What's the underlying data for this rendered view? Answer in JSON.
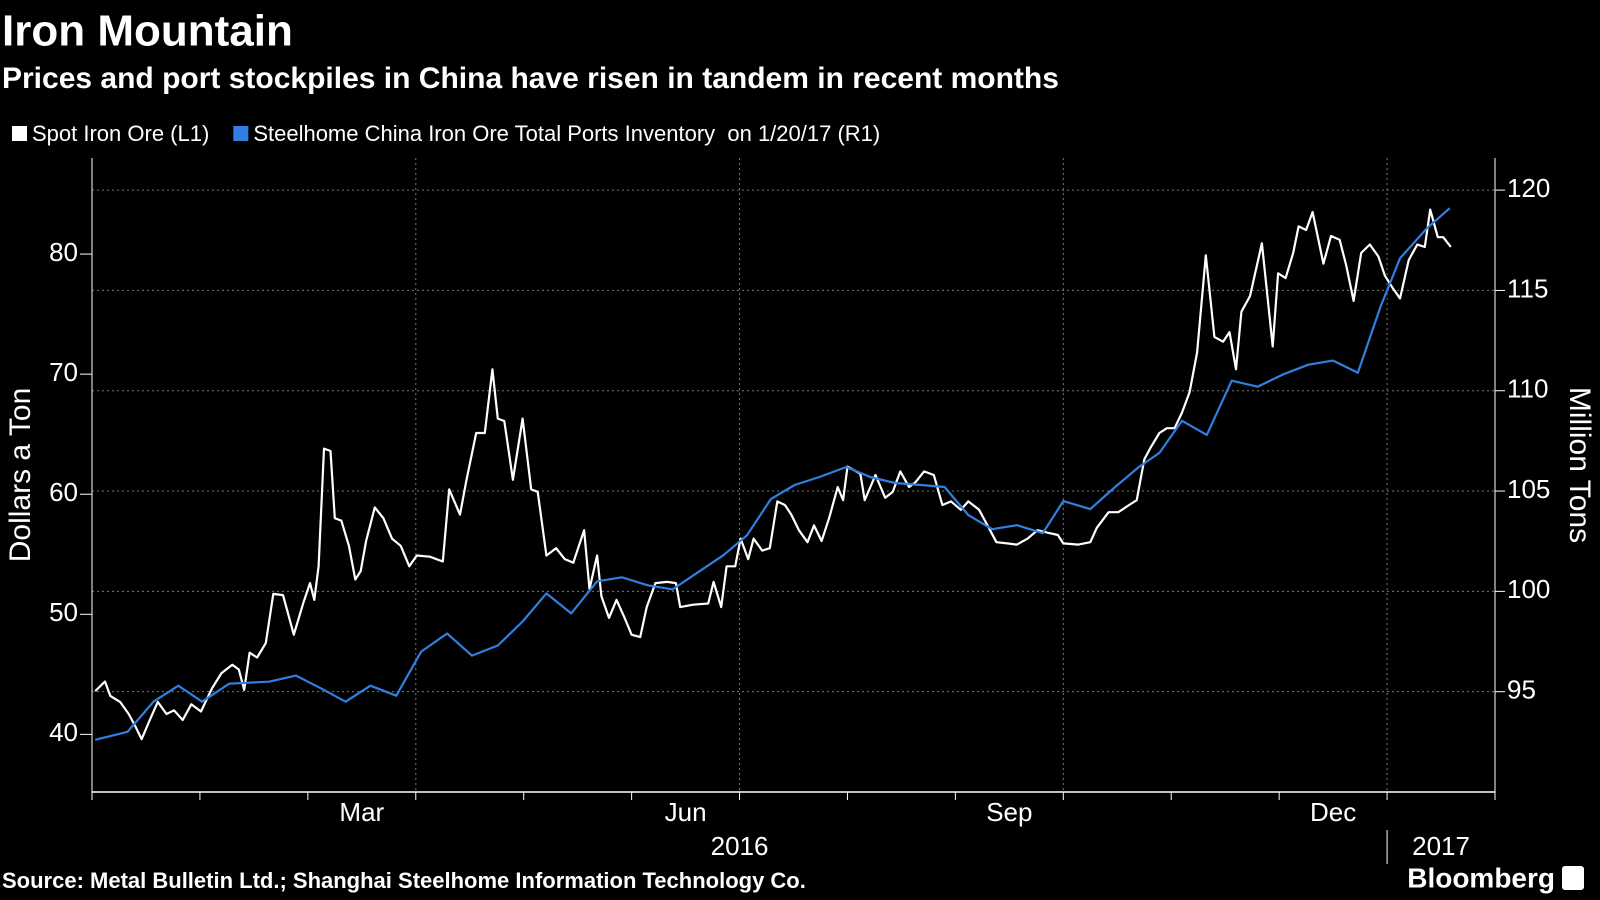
{
  "chart_data": {
    "type": "line",
    "title": "Iron Mountain",
    "subtitle": "Prices and port stockpiles in China have risen in tandem in recent months",
    "ylabel": "Dollars a Ton",
    "y2label": "Million Tons",
    "source": "Source: Metal Bulletin Ltd.; Shanghai Steelhome Information Technology Co.",
    "brand": "Bloomberg",
    "xlim": [
      0,
      13
    ],
    "xticks": [
      {
        "value": 2.5,
        "label": "Mar"
      },
      {
        "value": 5.5,
        "label": "Jun"
      },
      {
        "value": 8.5,
        "label": "Sep"
      },
      {
        "value": 11.5,
        "label": "Dec"
      }
    ],
    "xgrid": [
      3,
      6,
      9,
      12
    ],
    "xminorticks": [
      0,
      1,
      2,
      3,
      4,
      5,
      6,
      7,
      8,
      9,
      10,
      11,
      12,
      13
    ],
    "year_labels": [
      {
        "value": 6,
        "label": "2016"
      },
      {
        "value": 12.5,
        "label": "2017"
      }
    ],
    "year_breaks": [
      12
    ],
    "ylim": [
      35.2,
      88
    ],
    "yticks": [
      40,
      50,
      60,
      70,
      80
    ],
    "y2lim": [
      90,
      121.6
    ],
    "y2ticks": [
      95,
      100,
      105,
      110,
      115,
      120
    ],
    "grid": "y2",
    "series": [
      {
        "name": "Spot Iron Ore (L1)",
        "color": "#ffffff",
        "axis": "y",
        "x": [
          0.03,
          0.12,
          0.17,
          0.26,
          0.34,
          0.4,
          0.46,
          0.54,
          0.61,
          0.69,
          0.76,
          0.84,
          0.92,
          1.01,
          1.11,
          1.2,
          1.3,
          1.36,
          1.41,
          1.46,
          1.53,
          1.61,
          1.68,
          1.77,
          1.87,
          1.96,
          2.02,
          2.06,
          2.1,
          2.15,
          2.21,
          2.25,
          2.31,
          2.38,
          2.44,
          2.49,
          2.54,
          2.62,
          2.7,
          2.78,
          2.86,
          2.94,
          3.01,
          3.13,
          3.25,
          3.31,
          3.41,
          3.47,
          3.56,
          3.64,
          3.71,
          3.76,
          3.82,
          3.9,
          3.99,
          4.07,
          4.13,
          4.21,
          4.3,
          4.38,
          4.46,
          4.56,
          4.61,
          4.68,
          4.72,
          4.79,
          4.86,
          4.93,
          5.0,
          5.08,
          5.14,
          5.22,
          5.33,
          5.41,
          5.45,
          5.57,
          5.71,
          5.76,
          5.83,
          5.88,
          5.96,
          6.01,
          6.08,
          6.13,
          6.21,
          6.28,
          6.35,
          6.42,
          6.48,
          6.55,
          6.63,
          6.69,
          6.76,
          6.83,
          6.91,
          6.96,
          7.0,
          7.12,
          7.16,
          7.26,
          7.35,
          7.42,
          7.49,
          7.57,
          7.63,
          7.71,
          7.8,
          7.88,
          7.96,
          8.05,
          8.12,
          8.22,
          8.31,
          8.38,
          8.48,
          8.57,
          8.67,
          8.76,
          8.85,
          8.95,
          9.0,
          9.14,
          9.25,
          9.31,
          9.42,
          9.51,
          9.61,
          9.68,
          9.75,
          9.81,
          9.89,
          9.96,
          10.03,
          10.1,
          10.17,
          10.24,
          10.32,
          10.4,
          10.48,
          10.54,
          10.6,
          10.65,
          10.73,
          10.84,
          10.94,
          10.99,
          11.06,
          11.13,
          11.18,
          11.25,
          11.31,
          11.41,
          11.48,
          11.56,
          11.62,
          11.69,
          11.76,
          11.84,
          11.92,
          11.98,
          12.05,
          12.12,
          12.2,
          12.28,
          12.35,
          12.4,
          12.47,
          12.52,
          12.59
        ],
        "values": [
          43.6,
          44.4,
          43.2,
          42.7,
          41.7,
          40.7,
          39.6,
          41.3,
          42.7,
          41.7,
          42.0,
          41.2,
          42.5,
          41.9,
          43.8,
          45.1,
          45.8,
          45.4,
          43.7,
          46.8,
          46.4,
          47.6,
          51.7,
          51.6,
          48.3,
          51.0,
          52.6,
          51.2,
          54.0,
          63.8,
          63.6,
          58.0,
          57.8,
          55.7,
          52.9,
          53.6,
          56.1,
          58.9,
          58.0,
          56.3,
          55.7,
          54.0,
          54.9,
          54.8,
          54.4,
          60.4,
          58.3,
          61.2,
          65.1,
          65.1,
          70.4,
          66.3,
          66.1,
          61.2,
          66.3,
          60.4,
          60.2,
          54.9,
          55.5,
          54.6,
          54.3,
          57.0,
          52.1,
          54.9,
          51.5,
          49.7,
          51.2,
          49.8,
          48.3,
          48.1,
          50.6,
          52.6,
          52.7,
          52.6,
          50.6,
          50.8,
          50.9,
          52.7,
          50.6,
          54.0,
          54.0,
          56.3,
          54.6,
          56.3,
          55.3,
          55.5,
          59.4,
          59.1,
          58.3,
          57.0,
          56.0,
          57.4,
          56.1,
          58.0,
          60.6,
          59.5,
          62.3,
          61.7,
          59.5,
          61.6,
          59.7,
          60.2,
          61.9,
          60.6,
          61.0,
          61.9,
          61.6,
          59.1,
          59.4,
          58.7,
          59.4,
          58.7,
          57.2,
          56.0,
          55.9,
          55.8,
          56.3,
          57.0,
          56.8,
          56.6,
          55.9,
          55.8,
          56.0,
          57.2,
          58.5,
          58.5,
          59.1,
          59.5,
          62.9,
          63.9,
          65.1,
          65.5,
          65.5,
          66.8,
          68.5,
          71.8,
          79.9,
          73.1,
          72.7,
          73.5,
          70.4,
          75.2,
          76.5,
          80.9,
          72.3,
          78.4,
          78.0,
          80.1,
          82.3,
          82.0,
          83.5,
          79.2,
          81.5,
          81.2,
          79.1,
          76.1,
          80.1,
          80.8,
          79.8,
          78.2,
          77.2,
          76.3,
          79.5,
          80.8,
          80.6,
          83.7,
          81.4,
          81.4,
          80.6
        ]
      },
      {
        "name": "Steelhome China Iron Ore Total Ports Inventory  on 1/20/17 (R1)",
        "color": "#2f80e0",
        "axis": "y2",
        "x": [
          0.03,
          0.33,
          0.57,
          0.8,
          1.02,
          1.27,
          1.64,
          1.89,
          2.11,
          2.35,
          2.58,
          2.82,
          3.05,
          3.29,
          3.52,
          3.76,
          3.99,
          4.21,
          4.44,
          4.68,
          4.91,
          5.15,
          5.38,
          5.6,
          5.85,
          6.07,
          6.29,
          6.51,
          6.74,
          6.99,
          7.21,
          7.44,
          7.68,
          7.9,
          8.12,
          8.34,
          8.57,
          8.81,
          9.0,
          9.25,
          9.48,
          9.7,
          9.89,
          10.1,
          10.33,
          10.56,
          10.8,
          11.03,
          11.27,
          11.5,
          11.73,
          11.94,
          12.12,
          12.37,
          12.58
        ],
        "values": [
          92.6,
          93.0,
          94.5,
          95.3,
          94.5,
          95.4,
          95.5,
          95.8,
          95.2,
          94.5,
          95.3,
          94.8,
          97.0,
          97.9,
          96.8,
          97.3,
          98.5,
          99.9,
          98.9,
          100.5,
          100.7,
          100.3,
          100.1,
          100.9,
          101.8,
          102.8,
          104.6,
          105.3,
          105.7,
          106.2,
          105.7,
          105.4,
          105.3,
          105.2,
          103.8,
          103.1,
          103.3,
          102.9,
          104.5,
          104.1,
          105.2,
          106.2,
          106.9,
          108.5,
          107.8,
          110.5,
          110.2,
          110.8,
          111.3,
          111.5,
          110.9,
          114.2,
          116.6,
          118.1,
          119.1
        ]
      }
    ]
  }
}
